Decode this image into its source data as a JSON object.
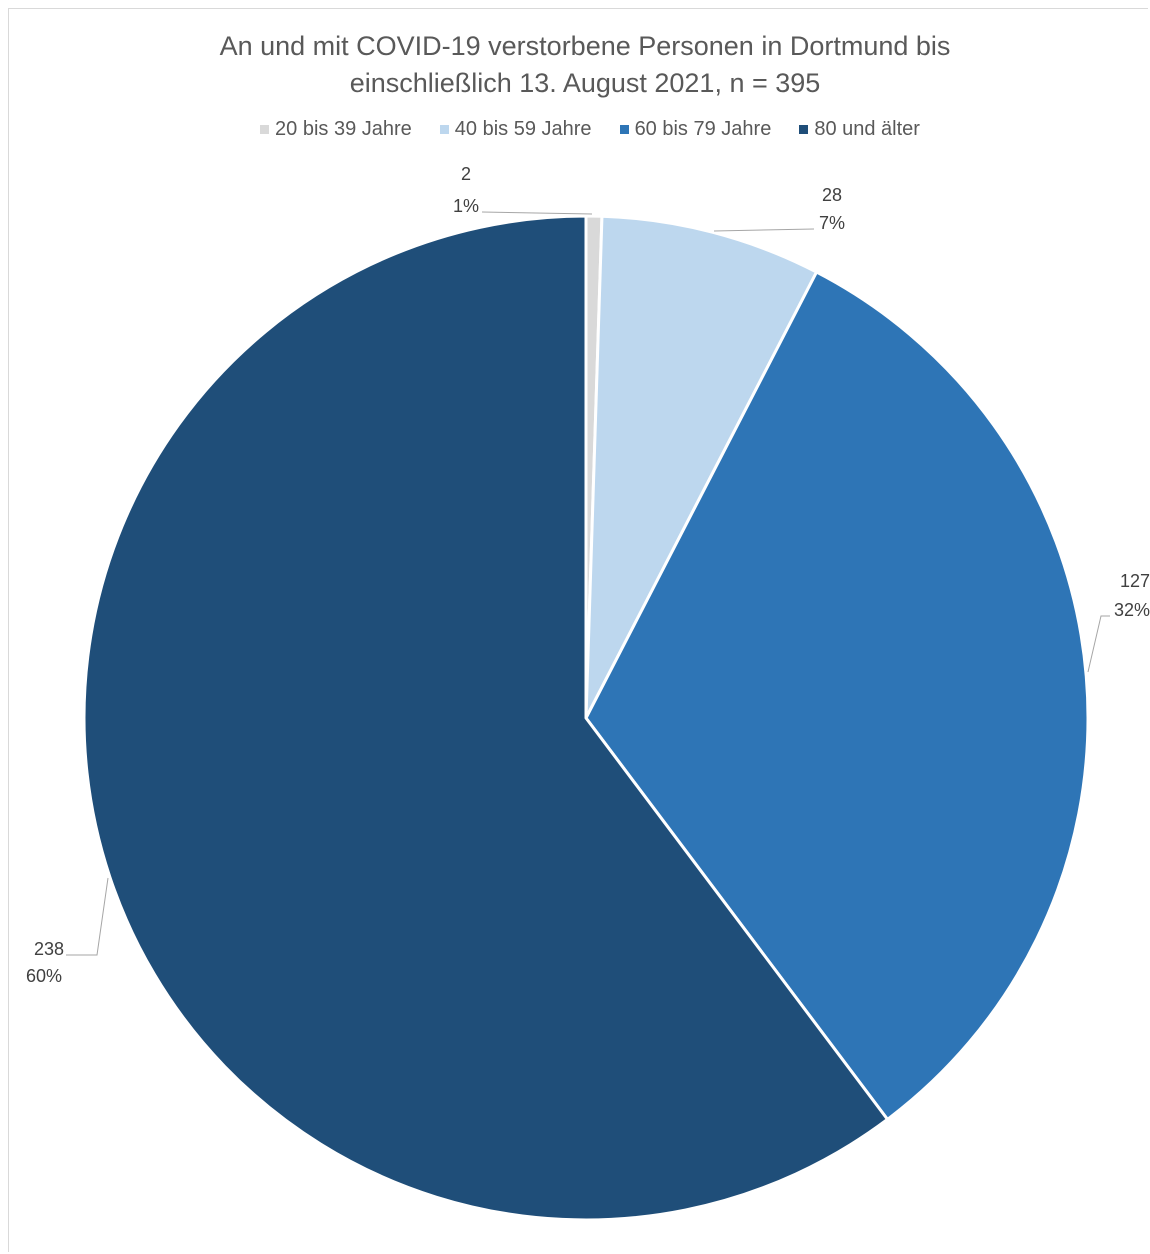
{
  "chart_data": {
    "type": "pie",
    "title_lines": [
      "An und mit COVID-19 verstorbene Personen in Dortmund bis",
      "einschließlich 13. August 2021, n = 395"
    ],
    "legend_placement": "top",
    "categories": [
      "20 bis 39 Jahre",
      "40 bis 59 Jahre",
      "60 bis 79 Jahre",
      "80 und älter"
    ],
    "values": [
      2,
      28,
      127,
      238
    ],
    "value_labels": [
      "2",
      "28",
      "127",
      "238"
    ],
    "percent_labels": [
      "1%",
      "7%",
      "32%",
      "60%"
    ],
    "colors": [
      "#d9d9d9",
      "#bdd7ee",
      "#2e75b6",
      "#1f4e79"
    ]
  }
}
